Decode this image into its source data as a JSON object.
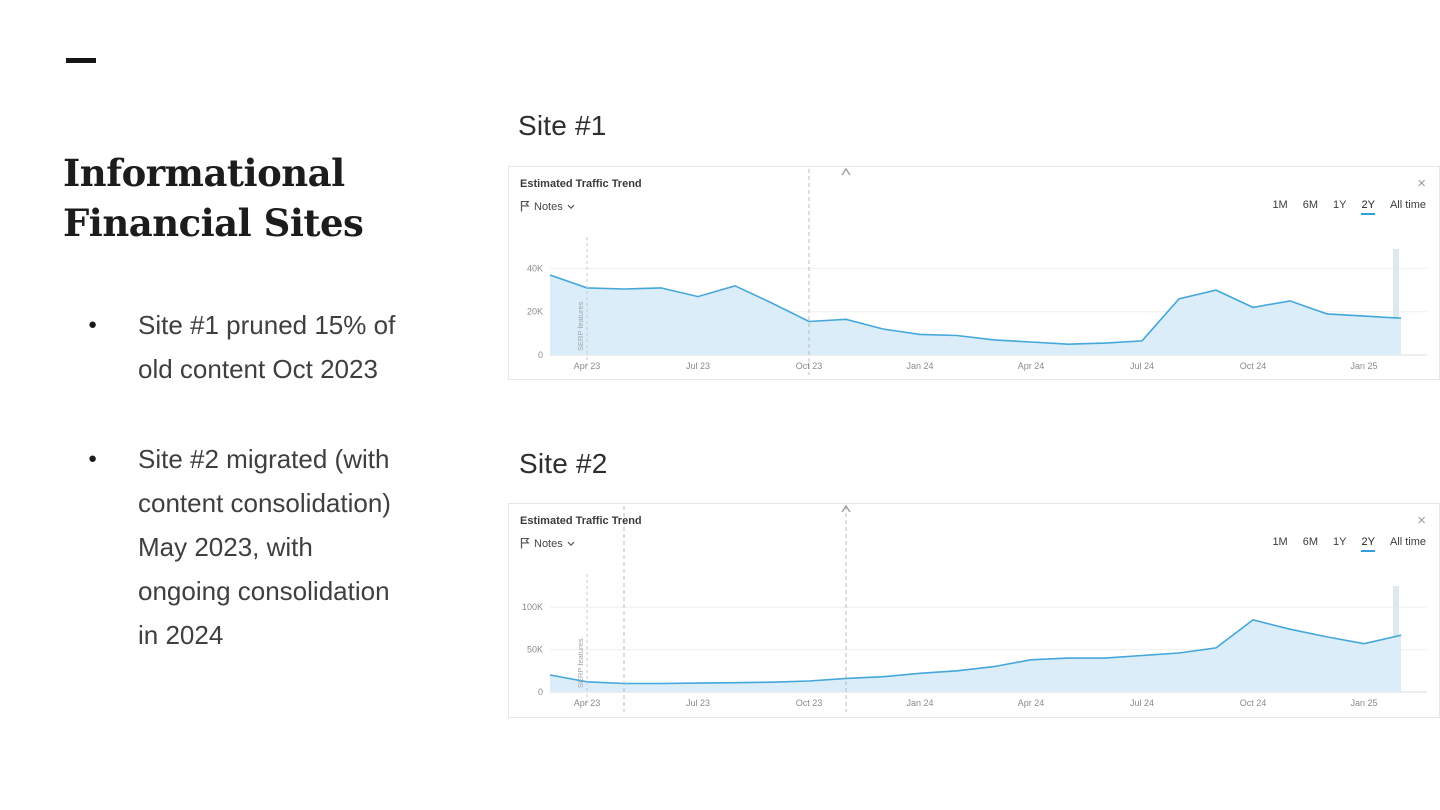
{
  "slide": {
    "dash": "—",
    "title_line1": "Informational",
    "title_line2": "Financial Sites",
    "bullets": [
      "Site #1 pruned 15% of old content Oct 2023",
      "Site #2 migrated (with content consolidation) May 2023, with ongoing consolidation in 2024"
    ]
  },
  "charts_common": {
    "panel_title": "Estimated Traffic Trend",
    "notes_label": "Notes",
    "ranges": [
      "1M",
      "6M",
      "1Y",
      "2Y",
      "All time"
    ],
    "active_range": "2Y",
    "close_label": "×",
    "serp_label": "SERP features",
    "line_color": "#45a7db",
    "fill_color": "#daedf8",
    "accent_color": "#2f9fe0"
  },
  "chart_data": [
    {
      "type": "area",
      "section_label": "Site #1",
      "title": "Estimated Traffic Trend",
      "x": [
        "Mar 23",
        "Apr 23",
        "May 23",
        "Jun 23",
        "Jul 23",
        "Aug 23",
        "Sep 23",
        "Oct 23",
        "Nov 23",
        "Dec 23",
        "Jan 24",
        "Feb 24",
        "Mar 24",
        "Apr 24",
        "May 24",
        "Jun 24",
        "Jul 24",
        "Aug 24",
        "Sep 24",
        "Oct 24",
        "Nov 24",
        "Dec 24",
        "Jan 25",
        "Feb 25"
      ],
      "values": [
        37000,
        31000,
        30500,
        31000,
        27000,
        32000,
        24000,
        15500,
        16500,
        12000,
        9500,
        9000,
        7000,
        6000,
        5000,
        5500,
        6500,
        26000,
        30000,
        22000,
        25000,
        19000,
        18000,
        17000
      ],
      "x_tick_labels": [
        "Apr 23",
        "Jul 23",
        "Oct 23",
        "Jan 24",
        "Apr 24",
        "Jul 24",
        "Oct 24",
        "Jan 25"
      ],
      "y_tick_labels": [
        "0",
        "20K",
        "40K"
      ],
      "y_tick_values": [
        0,
        20000,
        40000
      ],
      "ylim": [
        0,
        49000
      ],
      "grid": true,
      "legend_position": "none",
      "annotations": {
        "serp_features_line": {
          "x": "Apr 23",
          "label": "SERP features"
        },
        "note_lines": [
          "Oct 23"
        ],
        "note_markers": [
          "Nov 23"
        ]
      }
    },
    {
      "type": "area",
      "section_label": "Site #2",
      "title": "Estimated Traffic Trend",
      "x": [
        "Mar 23",
        "Apr 23",
        "May 23",
        "Jun 23",
        "Jul 23",
        "Aug 23",
        "Sep 23",
        "Oct 23",
        "Nov 23",
        "Dec 23",
        "Jan 24",
        "Feb 24",
        "Mar 24",
        "Apr 24",
        "May 24",
        "Jun 24",
        "Jul 24",
        "Aug 24",
        "Sep 24",
        "Oct 24",
        "Nov 24",
        "Dec 24",
        "Jan 25",
        "Feb 25"
      ],
      "values": [
        20000,
        12000,
        10000,
        10000,
        10500,
        11000,
        11500,
        13000,
        16000,
        18000,
        22000,
        25000,
        30000,
        38000,
        40000,
        40000,
        43000,
        46000,
        52000,
        85000,
        74000,
        65000,
        57000,
        67000
      ],
      "x_tick_labels": [
        "Apr 23",
        "Jul 23",
        "Oct 23",
        "Jan 24",
        "Apr 24",
        "Jul 24",
        "Oct 24",
        "Jan 25"
      ],
      "y_tick_labels": [
        "0",
        "50K",
        "100K"
      ],
      "y_tick_values": [
        0,
        50000,
        100000
      ],
      "ylim": [
        0,
        125000
      ],
      "grid": true,
      "legend_position": "none",
      "annotations": {
        "serp_features_line": {
          "x": "Apr 23",
          "label": "SERP features"
        },
        "note_lines": [
          "May 23",
          "Nov 23"
        ],
        "note_markers": [
          "Nov 23"
        ]
      }
    }
  ]
}
